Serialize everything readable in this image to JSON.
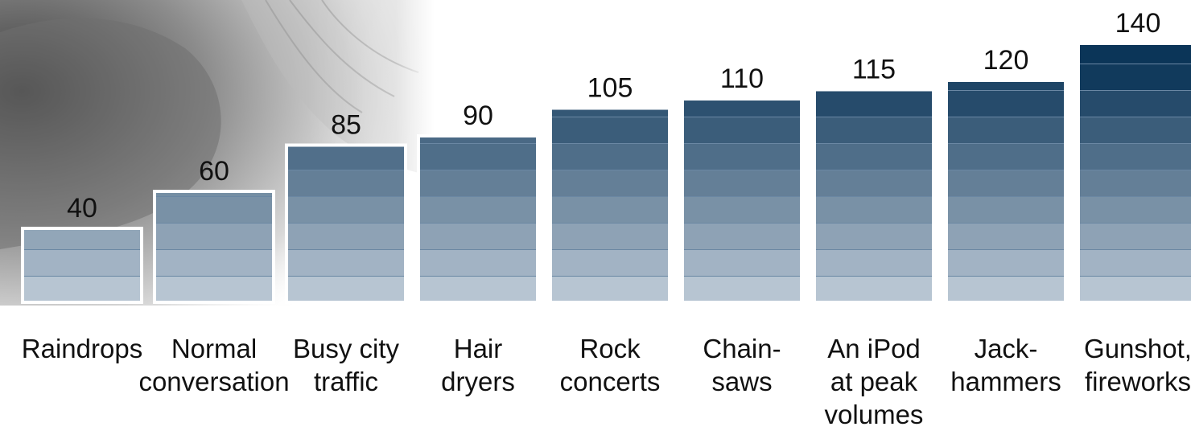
{
  "chart_data": {
    "type": "bar",
    "categories": [
      [
        "Raindrops"
      ],
      [
        "Normal",
        "conversation"
      ],
      [
        "Busy city",
        "traffic"
      ],
      [
        "Hair",
        "dryers"
      ],
      [
        "Rock",
        "concerts"
      ],
      [
        "Chain-",
        "saws"
      ],
      [
        "An iPod",
        "at peak",
        "volumes"
      ],
      [
        "Jack-",
        "hammers"
      ],
      [
        "Gunshot,",
        "fireworks"
      ]
    ],
    "values": [
      40,
      60,
      85,
      90,
      105,
      110,
      115,
      120,
      140
    ],
    "value_labels": [
      "40",
      "60",
      "85",
      "90",
      "105",
      "110",
      "115",
      "120",
      "140"
    ],
    "title": "",
    "xlabel": "",
    "ylabel": "",
    "ylim": [
      0,
      140
    ],
    "grid": false,
    "legend": "none",
    "colors": {
      "bar_light": "#ccd6e1",
      "bar_dark": "#0b3558",
      "band_line": "#6a87a3",
      "bar_outline": "#ffffff"
    }
  },
  "decor": {
    "background_image": "ear-photo"
  }
}
